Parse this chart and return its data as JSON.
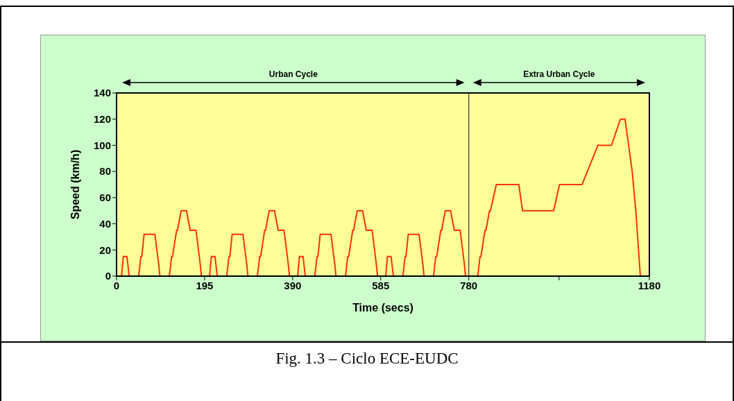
{
  "chart_data": {
    "type": "line",
    "title": "Fig. 1.3 – Ciclo ECE-EUDC",
    "xlabel": "Time (secs)",
    "ylabel": "Speed (km/h)",
    "annotations": [
      "Urban Cycle",
      "Extra Urban Cycle"
    ],
    "x": [
      0,
      11,
      15,
      23,
      28,
      49,
      54,
      56,
      61,
      85,
      93,
      96,
      117,
      122,
      124,
      133,
      135,
      143,
      155,
      163,
      176,
      185,
      188,
      195,
      206,
      210,
      218,
      223,
      244,
      249,
      251,
      256,
      280,
      288,
      291,
      312,
      317,
      319,
      328,
      330,
      338,
      350,
      358,
      371,
      380,
      383,
      390,
      401,
      405,
      413,
      418,
      439,
      444,
      446,
      451,
      475,
      483,
      486,
      507,
      512,
      514,
      523,
      525,
      533,
      545,
      553,
      566,
      575,
      578,
      585,
      596,
      600,
      608,
      613,
      634,
      639,
      641,
      646,
      670,
      678,
      681,
      702,
      707,
      709,
      718,
      720,
      728,
      740,
      748,
      761,
      770,
      773,
      780,
      800,
      805,
      807,
      816,
      818,
      826,
      828,
      841,
      891,
      899,
      968,
      981,
      1031,
      1066,
      1096,
      1116,
      1126,
      1142,
      1150,
      1160,
      1180
    ],
    "series": [
      {
        "color": "#ff3300",
        "values": [
          0,
          0,
          15,
          15,
          0,
          0,
          15,
          15,
          32,
          32,
          10,
          0,
          0,
          15,
          15,
          35,
          35,
          50,
          50,
          35,
          35,
          10,
          0,
          0,
          0,
          15,
          15,
          0,
          0,
          15,
          15,
          32,
          32,
          10,
          0,
          0,
          15,
          15,
          35,
          35,
          50,
          50,
          35,
          35,
          10,
          0,
          0,
          0,
          15,
          15,
          0,
          0,
          15,
          15,
          32,
          32,
          10,
          0,
          0,
          15,
          15,
          35,
          35,
          50,
          50,
          35,
          35,
          10,
          0,
          0,
          0,
          15,
          15,
          0,
          0,
          15,
          15,
          32,
          32,
          10,
          0,
          0,
          15,
          15,
          35,
          35,
          50,
          50,
          35,
          35,
          10,
          0,
          0,
          0,
          15,
          15,
          35,
          35,
          50,
          50,
          70,
          70,
          50,
          50,
          70,
          70,
          100,
          100,
          120,
          120,
          80,
          50,
          0,
          0
        ]
      }
    ],
    "xlim": [
      0,
      1180
    ],
    "xticks": [
      0,
      195,
      390,
      585,
      780,
      {
        "value": 980,
        "label": null
      },
      1180
    ],
    "ylim": [
      0,
      140
    ],
    "yticks": [
      0,
      20,
      40,
      60,
      80,
      100,
      120,
      140
    ],
    "ref_lines": [
      {
        "axis": "x",
        "value": 780,
        "color": "#555555"
      }
    ],
    "marker": "none",
    "line_style": "solid"
  }
}
